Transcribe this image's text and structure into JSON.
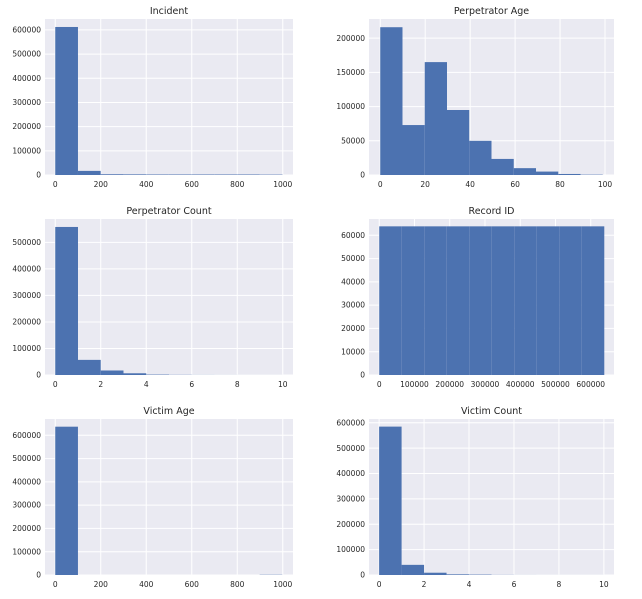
{
  "style": {
    "plot_bg": "#EAEAF2",
    "grid": "#FFFFFF",
    "bar_fill": "#4C72B0",
    "text": "#262626"
  },
  "chart_data": [
    {
      "type": "bar",
      "title": "Incident",
      "xlim": [
        -45,
        1045
      ],
      "xticks": [
        0,
        200,
        400,
        600,
        800,
        1000
      ],
      "xtick_labels": [
        "0",
        "200",
        "400",
        "600",
        "800",
        "1000"
      ],
      "ylim": [
        0,
        645000
      ],
      "yticks": [
        0,
        100000,
        200000,
        300000,
        400000,
        500000,
        600000
      ],
      "ytick_labels": [
        "0",
        "100000",
        "200000",
        "300000",
        "400000",
        "500000",
        "600000"
      ],
      "bin_edges": [
        0,
        99.9,
        199.8,
        299.7,
        399.6,
        499.5,
        599.4,
        699.3,
        799.2,
        899.1,
        999
      ],
      "counts": [
        612000,
        17000,
        3000,
        2500,
        2000,
        2000,
        2000,
        2000,
        2000,
        1500
      ]
    },
    {
      "type": "bar",
      "title": "Perpetrator Age",
      "xlim": [
        -5,
        104
      ],
      "xticks": [
        0,
        20,
        40,
        60,
        80,
        100
      ],
      "xtick_labels": [
        "0",
        "20",
        "40",
        "60",
        "80",
        "100"
      ],
      "ylim": [
        0,
        228000
      ],
      "yticks": [
        0,
        50000,
        100000,
        150000,
        200000
      ],
      "ytick_labels": [
        "0",
        "50000",
        "100000",
        "150000",
        "200000"
      ],
      "bin_edges": [
        0,
        9.9,
        19.8,
        29.7,
        39.6,
        49.5,
        59.4,
        69.3,
        79.2,
        89.1,
        99
      ],
      "counts": [
        216000,
        73000,
        165000,
        95000,
        50000,
        23500,
        10000,
        5000,
        1500,
        500
      ]
    },
    {
      "type": "bar",
      "title": "Perpetrator Count",
      "xlim": [
        -0.45,
        10.45
      ],
      "xticks": [
        0,
        2,
        4,
        6,
        8,
        10
      ],
      "xtick_labels": [
        "0",
        "2",
        "4",
        "6",
        "8",
        "10"
      ],
      "ylim": [
        0,
        588000
      ],
      "yticks": [
        0,
        100000,
        200000,
        300000,
        400000,
        500000
      ],
      "ytick_labels": [
        "0",
        "100000",
        "200000",
        "300000",
        "400000",
        "500000"
      ],
      "bin_edges": [
        0,
        1,
        2,
        3,
        4,
        5,
        6,
        7,
        8,
        9,
        10
      ],
      "counts": [
        558000,
        57000,
        17000,
        6500,
        1500,
        700,
        300,
        200,
        100,
        100
      ]
    },
    {
      "type": "bar",
      "title": "Record ID",
      "xlim": [
        -29000,
        666000
      ],
      "xticks": [
        0,
        100000,
        200000,
        300000,
        400000,
        500000,
        600000
      ],
      "xtick_labels": [
        "0",
        "100000",
        "200000",
        "300000",
        "400000",
        "500000",
        "600000"
      ],
      "ylim": [
        0,
        67000
      ],
      "yticks": [
        0,
        10000,
        20000,
        30000,
        40000,
        50000,
        60000
      ],
      "ytick_labels": [
        "0",
        "10000",
        "20000",
        "30000",
        "40000",
        "50000",
        "60000"
      ],
      "bin_edges": [
        1,
        63846,
        127691,
        191536,
        255381,
        319226,
        383071,
        446916,
        510761,
        574606,
        638454
      ],
      "counts": [
        63845,
        63845,
        63845,
        63845,
        63845,
        63845,
        63845,
        63845,
        63845,
        63848
      ]
    },
    {
      "type": "bar",
      "title": "Victim Age",
      "xlim": [
        -45,
        1045
      ],
      "xticks": [
        0,
        200,
        400,
        600,
        800,
        1000
      ],
      "xtick_labels": [
        "0",
        "200",
        "400",
        "600",
        "800",
        "1000"
      ],
      "ylim": [
        0,
        670000
      ],
      "yticks": [
        0,
        100000,
        200000,
        300000,
        400000,
        500000,
        600000
      ],
      "ytick_labels": [
        "0",
        "100000",
        "200000",
        "300000",
        "400000",
        "500000",
        "600000"
      ],
      "bin_edges": [
        0,
        99.8,
        199.6,
        299.4,
        399.2,
        499,
        598.8,
        698.6,
        798.4,
        898.2,
        998
      ],
      "counts": [
        637000,
        0,
        0,
        0,
        0,
        0,
        0,
        0,
        0,
        1000
      ]
    },
    {
      "type": "bar",
      "title": "Victim Count",
      "xlim": [
        -0.45,
        10.45
      ],
      "xticks": [
        0,
        2,
        4,
        6,
        8,
        10
      ],
      "xtick_labels": [
        "0",
        "2",
        "4",
        "6",
        "8",
        "10"
      ],
      "ylim": [
        0,
        615000
      ],
      "yticks": [
        0,
        100000,
        200000,
        300000,
        400000,
        500000,
        600000
      ],
      "ytick_labels": [
        "0",
        "100000",
        "200000",
        "300000",
        "400000",
        "500000",
        "600000"
      ],
      "bin_edges": [
        0,
        1,
        2,
        3,
        4,
        5,
        6,
        7,
        8,
        9,
        10
      ],
      "counts": [
        585000,
        40000,
        9000,
        2500,
        1500,
        500,
        200,
        100,
        100,
        100
      ]
    }
  ]
}
